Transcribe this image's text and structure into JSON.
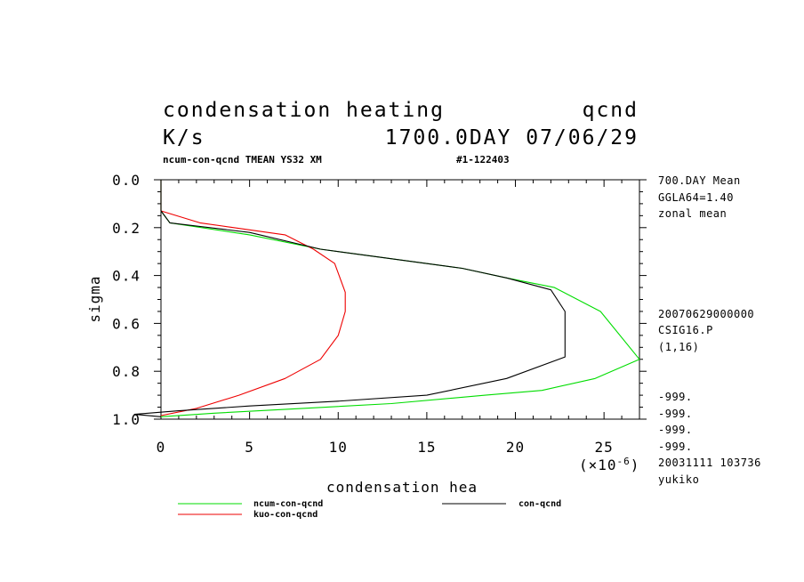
{
  "header": {
    "title_left": "condensation heating",
    "title_right": "qcnd",
    "units": "K/s",
    "date_line": "1700.0DAY 07/06/29",
    "subtitle": "ncum-con-qcnd TMEAN YS32 XM",
    "run_id": "#1-122403"
  },
  "side_info": {
    "top": [
      "700.DAY Mean",
      "GGLA64=1.40",
      "zonal mean"
    ],
    "middle": [
      "20070629000000",
      "CSIG16.P",
      "(1,16)"
    ],
    "bottom": [
      "-999.",
      "-999.",
      "-999.",
      "-999.",
      "20031111 103736",
      "yukiko"
    ]
  },
  "legend": [
    {
      "name": "ncum-con-qcnd",
      "color": "#00dd00"
    },
    {
      "name": "kuo-con-qcnd",
      "color": "#ee0000"
    },
    {
      "name": "con-qcnd",
      "color": "#000000"
    }
  ],
  "chart_data": {
    "type": "line",
    "xlabel": "condensation hea",
    "ylabel": "sigma",
    "x_scale_label": "(×10",
    "x_scale_exp": "-6",
    "x_scale_close": ")",
    "xlim": [
      0,
      27
    ],
    "ylim": [
      1.0,
      0.0
    ],
    "y_inverted": true,
    "xticks": [
      0,
      5,
      10,
      15,
      20,
      25
    ],
    "xtick_labels": [
      "0",
      "5",
      "10",
      "15",
      "20",
      "25"
    ],
    "yticks": [
      0.0,
      0.2,
      0.4,
      0.6,
      0.8,
      1.0
    ],
    "ytick_labels": [
      "0.0",
      "0.2",
      "0.4",
      "0.6",
      "0.8",
      "1.0"
    ],
    "grid": false,
    "series": [
      {
        "name": "ncum-con-qcnd",
        "color": "#00dd00",
        "points": [
          [
            0,
            0.0
          ],
          [
            0,
            0.13
          ],
          [
            0.5,
            0.18
          ],
          [
            5,
            0.23
          ],
          [
            9,
            0.29
          ],
          [
            12,
            0.32
          ],
          [
            17,
            0.37
          ],
          [
            19.5,
            0.41
          ],
          [
            22.2,
            0.45
          ],
          [
            24.8,
            0.55
          ],
          [
            27,
            0.75
          ],
          [
            24.5,
            0.83
          ],
          [
            21.5,
            0.88
          ],
          [
            18.3,
            0.9
          ],
          [
            13,
            0.935
          ],
          [
            8,
            0.955
          ],
          [
            3,
            0.975
          ],
          [
            0,
            0.99
          ]
        ]
      },
      {
        "name": "kuo-con-qcnd",
        "color": "#ee0000",
        "points": [
          [
            0,
            0.0
          ],
          [
            0,
            0.13
          ],
          [
            2.2,
            0.18
          ],
          [
            7,
            0.23
          ],
          [
            8.6,
            0.29
          ],
          [
            9.8,
            0.35
          ],
          [
            10.4,
            0.47
          ],
          [
            10.4,
            0.55
          ],
          [
            10,
            0.65
          ],
          [
            9,
            0.75
          ],
          [
            7,
            0.83
          ],
          [
            4.4,
            0.9
          ],
          [
            2,
            0.955
          ],
          [
            0,
            0.985
          ]
        ]
      },
      {
        "name": "con-qcnd",
        "color": "#000000",
        "points": [
          [
            0,
            0.0
          ],
          [
            0,
            0.13
          ],
          [
            0.5,
            0.18
          ],
          [
            5,
            0.22
          ],
          [
            9,
            0.29
          ],
          [
            12,
            0.32
          ],
          [
            17,
            0.37
          ],
          [
            19.5,
            0.41
          ],
          [
            22,
            0.46
          ],
          [
            22.8,
            0.55
          ],
          [
            22.8,
            0.74
          ],
          [
            19.5,
            0.83
          ],
          [
            15,
            0.9
          ],
          [
            10,
            0.925
          ],
          [
            5,
            0.945
          ],
          [
            1,
            0.965
          ],
          [
            -1.5,
            0.98
          ],
          [
            0,
            0.99
          ]
        ]
      }
    ]
  }
}
